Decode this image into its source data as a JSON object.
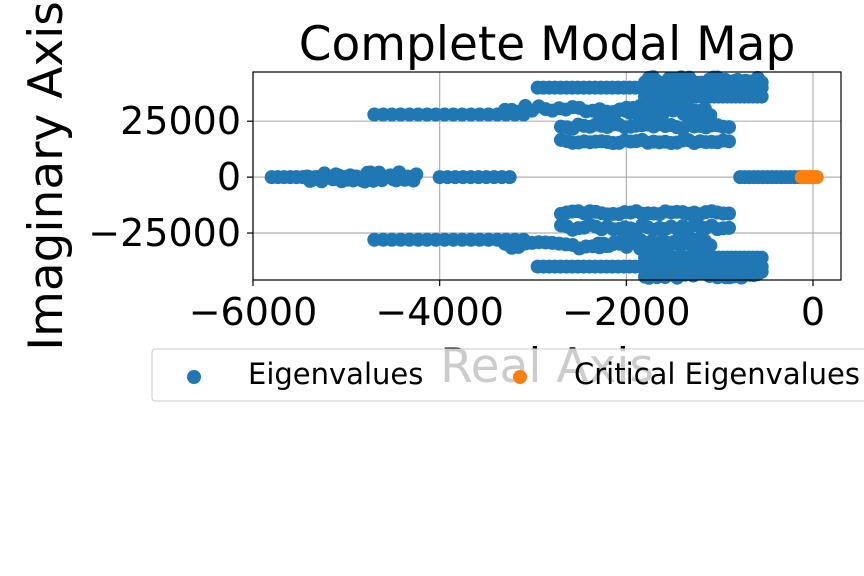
{
  "chart_data": {
    "type": "scatter",
    "title": "Complete Modal Map",
    "xlabel": "Real Axis",
    "ylabel": "Imaginary Axis",
    "xlim": [
      -6000,
      300
    ],
    "ylim": [
      -46000,
      47000
    ],
    "xticks": [
      -6000,
      -4000,
      -2000,
      0
    ],
    "xtick_labels": [
      "−6000",
      "−4000",
      "−2000",
      "0"
    ],
    "yticks": [
      -25000,
      0,
      25000
    ],
    "ytick_labels": [
      "−25000",
      "0",
      "25000"
    ],
    "grid": true,
    "legend": {
      "placement": "below-plot",
      "entries": [
        "Eigenvalues",
        "Critical Eigenvalues"
      ]
    },
    "series": [
      {
        "name": "Eigenvalues",
        "color": "#1f77b4",
        "clusters": [
          {
            "xrange": [
              -5800,
              -5200
            ],
            "y": 0,
            "count": 10
          },
          {
            "xrange": [
              -5450,
              -4250
            ],
            "y": 0,
            "count": 40,
            "yjitter": 2200
          },
          {
            "xrange": [
              -4000,
              -3250
            ],
            "y": 0,
            "count": 10
          },
          {
            "xrange": [
              -780,
              -150
            ],
            "y": 0,
            "count": 14
          },
          {
            "xrange": [
              -4700,
              -3100
            ],
            "y": 28000,
            "count": 18
          },
          {
            "xrange": [
              -4700,
              -3100
            ],
            "y": -28000,
            "count": 18
          },
          {
            "xrange": [
              -3300,
              -1200
            ],
            "y": 30500,
            "count": 30,
            "yjitter": 1500
          },
          {
            "xrange": [
              -3300,
              -1200
            ],
            "y": -30500,
            "count": 30,
            "yjitter": 1500
          },
          {
            "xrange": [
              -2950,
              -550
            ],
            "y": 40000,
            "count": 40
          },
          {
            "xrange": [
              -2950,
              -550
            ],
            "y": -40000,
            "count": 40
          },
          {
            "xrange": [
              -1800,
              -550
            ],
            "y": 43500,
            "count": 30,
            "yjitter": 1500
          },
          {
            "xrange": [
              -1800,
              -550
            ],
            "y": -43500,
            "count": 30,
            "yjitter": 1500
          },
          {
            "xrange": [
              -1800,
              -550
            ],
            "y": 36000,
            "count": 28
          },
          {
            "xrange": [
              -1800,
              -550
            ],
            "y": -36000,
            "count": 28
          },
          {
            "xrange": [
              -2700,
              -900
            ],
            "y": 22500,
            "count": 30,
            "yjitter": 1200
          },
          {
            "xrange": [
              -2700,
              -900
            ],
            "y": -22500,
            "count": 30,
            "yjitter": 1200
          },
          {
            "xrange": [
              -2700,
              -900
            ],
            "y": 16000,
            "count": 30,
            "yjitter": 800
          },
          {
            "xrange": [
              -2700,
              -900
            ],
            "y": -16000,
            "count": 30,
            "yjitter": 800
          },
          {
            "xrange": [
              -2300,
              -1100
            ],
            "y": 28500,
            "count": 22,
            "yjitter": 2500
          },
          {
            "xrange": [
              -2300,
              -1100
            ],
            "y": -28500,
            "count": 22,
            "yjitter": 2500
          }
        ]
      },
      {
        "name": "Critical Eigenvalues",
        "color": "#ff7f0e",
        "clusters": [
          {
            "xrange": [
              -120,
              40
            ],
            "y": 0,
            "count": 8
          }
        ]
      }
    ]
  }
}
